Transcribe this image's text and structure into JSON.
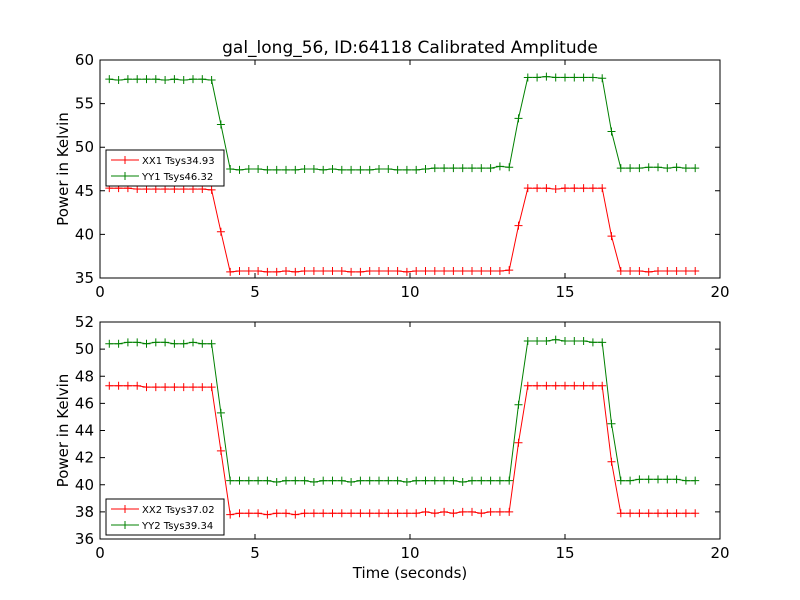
{
  "chart_data": [
    {
      "type": "line",
      "title": "gal_long_56, ID:64118 Calibrated Amplitude",
      "xlabel": "",
      "ylabel": "Power in Kelvin",
      "xlim": [
        0,
        20
      ],
      "ylim": [
        35,
        60
      ],
      "xticks": [
        0,
        5,
        10,
        15,
        20
      ],
      "yticks": [
        35,
        40,
        45,
        50,
        55,
        60
      ],
      "grid": false,
      "legend": "center-left",
      "x": [
        0.3,
        0.6,
        0.9,
        1.2,
        1.5,
        1.8,
        2.1,
        2.4,
        2.7,
        3.0,
        3.3,
        3.6,
        3.9,
        4.2,
        4.5,
        4.8,
        5.1,
        5.4,
        5.7,
        6.0,
        6.3,
        6.6,
        6.9,
        7.2,
        7.5,
        7.8,
        8.1,
        8.4,
        8.7,
        9.0,
        9.3,
        9.6,
        9.9,
        10.2,
        10.5,
        10.8,
        11.1,
        11.4,
        11.7,
        12.0,
        12.3,
        12.6,
        12.9,
        13.2,
        13.5,
        13.8,
        14.1,
        14.4,
        14.7,
        15.0,
        15.3,
        15.6,
        15.9,
        16.2,
        16.5,
        16.8,
        17.1,
        17.4,
        17.7,
        18.0,
        18.3,
        18.6,
        18.9,
        19.2
      ],
      "series": [
        {
          "name": "XX1 Tsys34.93",
          "color": "#ff0000",
          "values": [
            45.3,
            45.3,
            45.3,
            45.2,
            45.2,
            45.2,
            45.2,
            45.2,
            45.2,
            45.2,
            45.2,
            45.1,
            40.3,
            35.7,
            35.8,
            35.8,
            35.8,
            35.7,
            35.7,
            35.8,
            35.7,
            35.8,
            35.8,
            35.8,
            35.8,
            35.8,
            35.7,
            35.7,
            35.8,
            35.8,
            35.8,
            35.8,
            35.7,
            35.8,
            35.8,
            35.8,
            35.8,
            35.8,
            35.8,
            35.8,
            35.8,
            35.8,
            35.8,
            35.9,
            41.0,
            45.3,
            45.3,
            45.3,
            45.2,
            45.3,
            45.3,
            45.3,
            45.3,
            45.3,
            39.8,
            35.8,
            35.8,
            35.8,
            35.7,
            35.8,
            35.8,
            35.8,
            35.8,
            35.8
          ]
        },
        {
          "name": "YY1 Tsys46.32",
          "color": "#008000",
          "values": [
            57.8,
            57.7,
            57.8,
            57.8,
            57.8,
            57.8,
            57.7,
            57.8,
            57.7,
            57.8,
            57.8,
            57.7,
            52.6,
            47.5,
            47.4,
            47.5,
            47.5,
            47.4,
            47.4,
            47.4,
            47.4,
            47.5,
            47.5,
            47.4,
            47.5,
            47.4,
            47.4,
            47.4,
            47.4,
            47.5,
            47.5,
            47.4,
            47.4,
            47.4,
            47.5,
            47.6,
            47.6,
            47.6,
            47.6,
            47.6,
            47.6,
            47.6,
            47.8,
            47.7,
            53.3,
            58.0,
            58.0,
            58.1,
            58.0,
            58.0,
            58.0,
            58.0,
            58.0,
            57.9,
            51.8,
            47.6,
            47.6,
            47.6,
            47.7,
            47.7,
            47.6,
            47.7,
            47.6,
            47.6
          ]
        }
      ]
    },
    {
      "type": "line",
      "title": "",
      "xlabel": "Time (seconds)",
      "ylabel": "Power in Kelvin",
      "xlim": [
        0,
        20
      ],
      "ylim": [
        36,
        52
      ],
      "xticks": [
        0,
        5,
        10,
        15,
        20
      ],
      "yticks": [
        36,
        38,
        40,
        42,
        44,
        46,
        48,
        50,
        52
      ],
      "grid": false,
      "legend": "lower-left",
      "x": [
        0.3,
        0.6,
        0.9,
        1.2,
        1.5,
        1.8,
        2.1,
        2.4,
        2.7,
        3.0,
        3.3,
        3.6,
        3.9,
        4.2,
        4.5,
        4.8,
        5.1,
        5.4,
        5.7,
        6.0,
        6.3,
        6.6,
        6.9,
        7.2,
        7.5,
        7.8,
        8.1,
        8.4,
        8.7,
        9.0,
        9.3,
        9.6,
        9.9,
        10.2,
        10.5,
        10.8,
        11.1,
        11.4,
        11.7,
        12.0,
        12.3,
        12.6,
        12.9,
        13.2,
        13.5,
        13.8,
        14.1,
        14.4,
        14.7,
        15.0,
        15.3,
        15.6,
        15.9,
        16.2,
        16.5,
        16.8,
        17.1,
        17.4,
        17.7,
        18.0,
        18.3,
        18.6,
        18.9,
        19.2
      ],
      "series": [
        {
          "name": "XX2 Tsys37.02",
          "color": "#ff0000",
          "values": [
            47.3,
            47.3,
            47.3,
            47.3,
            47.2,
            47.2,
            47.2,
            47.2,
            47.2,
            47.2,
            47.2,
            47.2,
            42.5,
            37.8,
            37.9,
            37.9,
            37.9,
            37.8,
            37.9,
            37.9,
            37.8,
            37.9,
            37.9,
            37.9,
            37.9,
            37.9,
            37.9,
            37.9,
            37.9,
            37.9,
            37.9,
            37.9,
            37.9,
            37.9,
            38.0,
            37.9,
            38.0,
            37.9,
            38.0,
            38.0,
            37.9,
            38.0,
            38.0,
            38.0,
            43.1,
            47.3,
            47.3,
            47.3,
            47.3,
            47.3,
            47.3,
            47.3,
            47.3,
            47.3,
            41.7,
            37.9,
            37.9,
            37.9,
            37.9,
            37.9,
            37.9,
            37.9,
            37.9,
            37.9
          ]
        },
        {
          "name": "YY2 Tsys39.34",
          "color": "#008000",
          "values": [
            50.4,
            50.4,
            50.5,
            50.5,
            50.4,
            50.5,
            50.5,
            50.4,
            50.4,
            50.5,
            50.4,
            50.4,
            45.3,
            40.3,
            40.3,
            40.3,
            40.3,
            40.3,
            40.2,
            40.3,
            40.3,
            40.3,
            40.2,
            40.3,
            40.3,
            40.3,
            40.2,
            40.3,
            40.3,
            40.3,
            40.3,
            40.3,
            40.2,
            40.3,
            40.3,
            40.3,
            40.3,
            40.3,
            40.2,
            40.3,
            40.3,
            40.3,
            40.3,
            40.3,
            45.9,
            50.6,
            50.6,
            50.6,
            50.7,
            50.6,
            50.6,
            50.6,
            50.5,
            50.5,
            44.5,
            40.3,
            40.3,
            40.4,
            40.4,
            40.4,
            40.4,
            40.4,
            40.3,
            40.3
          ]
        }
      ]
    }
  ]
}
